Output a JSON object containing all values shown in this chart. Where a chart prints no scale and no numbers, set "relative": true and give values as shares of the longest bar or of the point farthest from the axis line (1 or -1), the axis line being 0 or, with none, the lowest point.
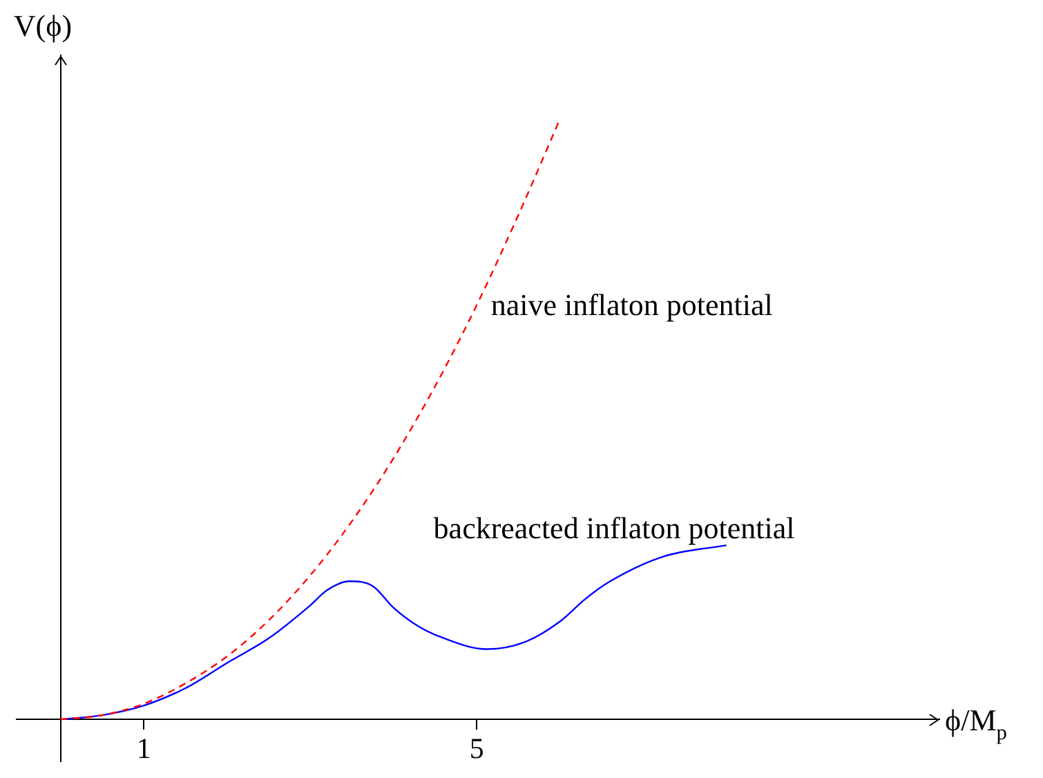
{
  "chart_data": {
    "type": "line",
    "xlabel": "ϕ/M$_{p}$",
    "ylabel": "V(ϕ)",
    "relative": true,
    "marker": "none",
    "xlim": [
      -0.53,
      10.56
    ],
    "xticks": [
      1,
      5
    ],
    "series": [
      {
        "name": "naive inflaton potential",
        "color": "#ff0000",
        "line_style": "dashed",
        "x": [
          0,
          0.5,
          1,
          1.5,
          2,
          2.5,
          3,
          3.5,
          4,
          4.5,
          5,
          5.5,
          6
        ],
        "values": [
          0,
          0.007,
          0.026,
          0.06,
          0.105,
          0.165,
          0.24,
          0.33,
          0.435,
          0.555,
          0.69,
          0.84,
          1
        ]
      },
      {
        "name": "backreacted inflaton potential",
        "color": "#0000ff",
        "line_style": "solid",
        "x": [
          0,
          0.5,
          1,
          1.5,
          2,
          2.5,
          3,
          3.2,
          3.47,
          3.75,
          4,
          4.3,
          4.59,
          5.12,
          5.58,
          6,
          6.3,
          6.58,
          7.24,
          8
        ],
        "values": [
          0,
          0.007,
          0.023,
          0.052,
          0.094,
          0.135,
          0.19,
          0.215,
          0.23,
          0.222,
          0.186,
          0.155,
          0.136,
          0.117,
          0.129,
          0.163,
          0.2,
          0.228,
          0.271,
          0.29
        ]
      }
    ]
  }
}
